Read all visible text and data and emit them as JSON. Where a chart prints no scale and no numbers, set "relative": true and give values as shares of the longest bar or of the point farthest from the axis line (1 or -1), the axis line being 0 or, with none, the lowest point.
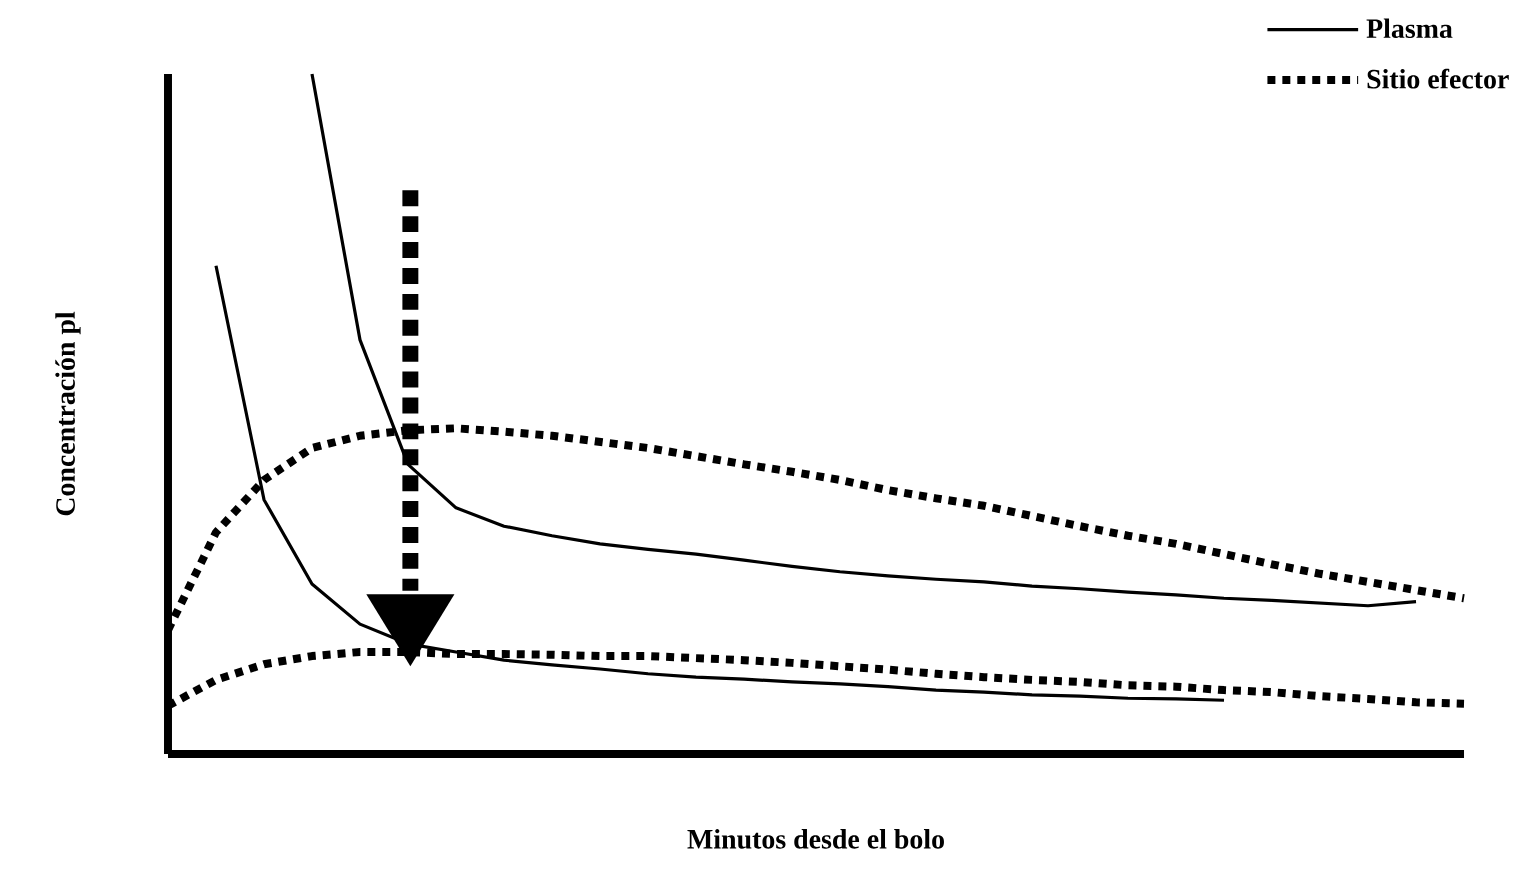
{
  "chart_data": {
    "type": "line",
    "relative": true,
    "xlabel": "Minutos desde el bolo",
    "ylabel": "Concentración pl",
    "legend": "top right",
    "marker": "none",
    "categories": [
      null,
      null,
      null,
      null,
      null,
      null,
      null,
      null,
      null,
      null,
      null,
      null,
      null,
      null,
      null,
      null,
      null,
      null,
      null,
      null,
      null,
      null,
      null,
      null,
      null,
      null,
      null,
      null
    ],
    "series": [
      {
        "name": "Plasma",
        "color": "#000000",
        "line_style": "solid",
        "values": [
          null,
          null,
          null,
          1.0,
          0.609,
          0.426,
          0.362,
          0.335,
          0.321,
          0.309,
          0.301,
          0.294,
          0.285,
          0.276,
          0.268,
          0.262,
          0.257,
          0.253,
          0.247,
          0.243,
          0.238,
          0.234,
          0.229,
          0.226,
          0.222,
          0.218,
          0.224,
          null
        ]
      },
      {
        "name": "Sitio efector",
        "color": "#000000",
        "line_style": "dotted",
        "values": [
          0.182,
          0.326,
          0.403,
          0.45,
          0.468,
          0.476,
          0.479,
          0.474,
          0.468,
          0.459,
          0.45,
          0.438,
          0.426,
          0.415,
          0.403,
          0.388,
          0.376,
          0.365,
          0.35,
          0.335,
          0.321,
          0.309,
          0.294,
          0.279,
          0.265,
          0.253,
          0.241,
          0.229
        ]
      },
      {
        "color": "#000000",
        "line_style": "solid",
        "values": [
          null,
          0.718,
          0.374,
          0.25,
          0.191,
          0.162,
          0.15,
          0.138,
          0.131,
          0.125,
          0.118,
          0.113,
          0.11,
          0.106,
          0.103,
          0.099,
          0.094,
          0.091,
          0.087,
          0.085,
          0.082,
          0.081,
          0.079,
          null,
          null,
          null,
          null,
          null
        ]
      },
      {
        "color": "#000000",
        "line_style": "dotted",
        "values": [
          0.071,
          0.109,
          0.132,
          0.144,
          0.15,
          0.15,
          0.147,
          0.147,
          0.146,
          0.144,
          0.144,
          0.141,
          0.138,
          0.134,
          0.129,
          0.124,
          0.118,
          0.113,
          0.109,
          0.106,
          0.101,
          0.099,
          0.094,
          0.091,
          0.085,
          0.081,
          0.076,
          0.074
        ]
      }
    ]
  }
}
